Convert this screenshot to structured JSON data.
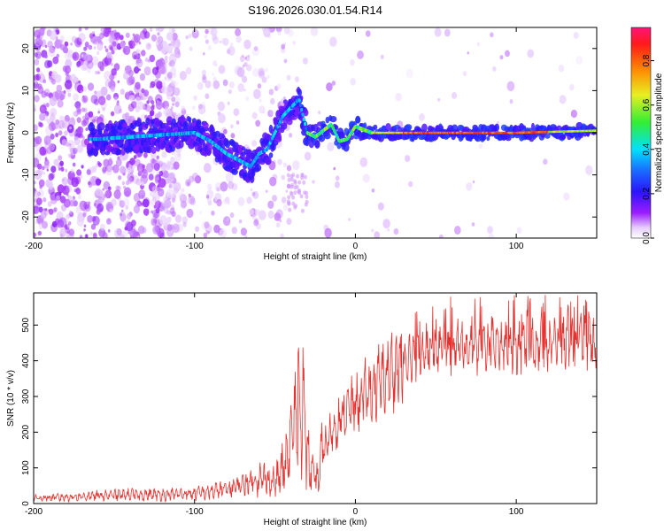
{
  "title": "S196.2026.030.01.54.R14",
  "chart_data": [
    {
      "type": "heatmap",
      "xlabel": "Height of straight line (km)",
      "ylabel": "Frequency (Hz)",
      "xlim": [
        -200,
        150
      ],
      "ylim": [
        -25,
        25
      ],
      "xticks": [
        -200,
        -100,
        0,
        100
      ],
      "yticks": [
        -20,
        -10,
        0,
        10,
        20
      ],
      "colorbar": {
        "label": "Normalized spectral amplitude",
        "range": [
          0,
          0.95
        ],
        "ticks": [
          0.0,
          0.2,
          0.4,
          0.6,
          0.8
        ]
      },
      "ridge": [
        {
          "x": -160,
          "f": -1.5
        },
        {
          "x": -140,
          "f": -1
        },
        {
          "x": -120,
          "f": -0.5
        },
        {
          "x": -100,
          "f": 0
        },
        {
          "x": -90,
          "f": -2
        },
        {
          "x": -80,
          "f": -5
        },
        {
          "x": -70,
          "f": -7
        },
        {
          "x": -65,
          "f": -8
        },
        {
          "x": -60,
          "f": -5
        },
        {
          "x": -55,
          "f": -4
        },
        {
          "x": -45,
          "f": 4
        },
        {
          "x": -40,
          "f": 6
        },
        {
          "x": -35,
          "f": 8
        },
        {
          "x": -30,
          "f": 0
        },
        {
          "x": -25,
          "f": -1
        },
        {
          "x": -15,
          "f": 2
        },
        {
          "x": -10,
          "f": -2
        },
        {
          "x": -5,
          "f": -1.5
        },
        {
          "x": 0,
          "f": 1.5
        },
        {
          "x": 10,
          "f": 0
        },
        {
          "x": 30,
          "f": 0
        },
        {
          "x": 100,
          "f": 0
        },
        {
          "x": 150,
          "f": 0.5
        }
      ]
    },
    {
      "type": "line",
      "xlabel": "Height of straight line (km)",
      "ylabel": "SNR (10 * v/v)",
      "xlim": [
        -200,
        150
      ],
      "ylim": [
        0,
        590
      ],
      "xticks": [
        -200,
        -100,
        0,
        100
      ],
      "yticks": [
        0,
        100,
        200,
        300,
        400,
        500
      ],
      "color": "#e8312e",
      "series": [
        {
          "x": -200,
          "y": 15
        },
        {
          "x": -180,
          "y": 18
        },
        {
          "x": -160,
          "y": 22
        },
        {
          "x": -140,
          "y": 25
        },
        {
          "x": -120,
          "y": 25
        },
        {
          "x": -100,
          "y": 28
        },
        {
          "x": -80,
          "y": 40
        },
        {
          "x": -70,
          "y": 55
        },
        {
          "x": -60,
          "y": 70
        },
        {
          "x": -50,
          "y": 60
        },
        {
          "x": -42,
          "y": 120
        },
        {
          "x": -36,
          "y": 260
        },
        {
          "x": -32,
          "y": 220
        },
        {
          "x": -28,
          "y": 90
        },
        {
          "x": -24,
          "y": 60
        },
        {
          "x": -20,
          "y": 150
        },
        {
          "x": -15,
          "y": 200
        },
        {
          "x": -10,
          "y": 230
        },
        {
          "x": -5,
          "y": 260
        },
        {
          "x": 0,
          "y": 280
        },
        {
          "x": 10,
          "y": 320
        },
        {
          "x": 20,
          "y": 360
        },
        {
          "x": 30,
          "y": 400
        },
        {
          "x": 40,
          "y": 430
        },
        {
          "x": 60,
          "y": 440
        },
        {
          "x": 80,
          "y": 445
        },
        {
          "x": 100,
          "y": 445
        },
        {
          "x": 120,
          "y": 450
        },
        {
          "x": 150,
          "y": 450
        }
      ]
    }
  ]
}
